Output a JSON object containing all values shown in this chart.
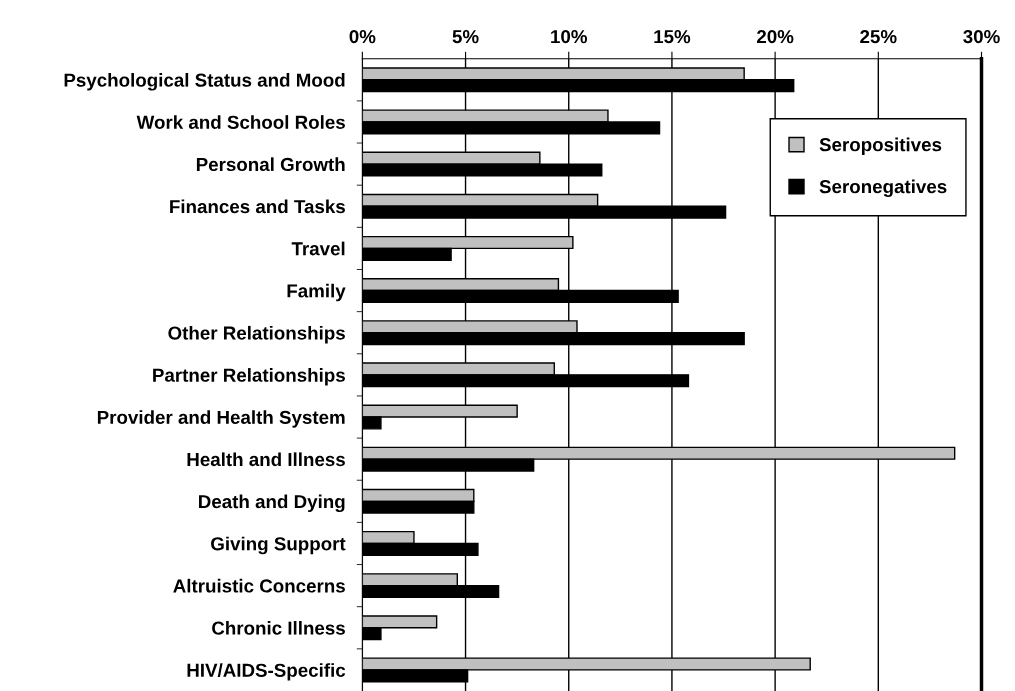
{
  "chart_data": {
    "type": "bar",
    "orientation": "horizontal",
    "categories": [
      "Psychological Status and Mood",
      "Work and School Roles",
      "Personal Growth",
      "Finances and Tasks",
      "Travel",
      "Family",
      "Other Relationships",
      "Partner Relationships",
      "Provider and Health System",
      "Health and Illness",
      "Death and Dying",
      "Giving Support",
      "Altruistic Concerns",
      "Chronic Illness",
      "HIV/AIDS-Specific"
    ],
    "series": [
      {
        "name": "Seropositives",
        "color": "#c0c0c0",
        "values": [
          18.5,
          11.9,
          8.6,
          11.4,
          10.2,
          9.5,
          10.4,
          9.3,
          7.5,
          28.7,
          5.4,
          2.5,
          4.6,
          3.6,
          21.7
        ]
      },
      {
        "name": "Seronegatives",
        "color": "#000000",
        "values": [
          20.9,
          14.4,
          11.6,
          17.6,
          4.3,
          15.3,
          18.5,
          15.8,
          0.9,
          8.3,
          5.4,
          5.6,
          6.6,
          0.9,
          5.1
        ]
      }
    ],
    "xlim": [
      0,
      30
    ],
    "xticks": [
      {
        "value": 0,
        "label": "0%"
      },
      {
        "value": 5,
        "label": "5%"
      },
      {
        "value": 10,
        "label": "10%"
      },
      {
        "value": 15,
        "label": "15%"
      },
      {
        "value": 20,
        "label": "20%"
      },
      {
        "value": 25,
        "label": "25%"
      },
      {
        "value": 30,
        "label": "30%"
      }
    ],
    "grid": "x",
    "legend": "top right"
  }
}
